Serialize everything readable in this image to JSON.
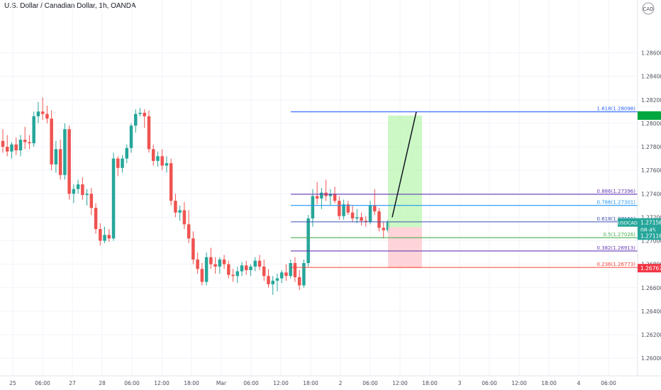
{
  "header": {
    "title": "U.S. Dollar / Canadian Dollar, 1h, OANDA",
    "currency": "CAD"
  },
  "colors": {
    "up": "#26a69a",
    "down": "#ef5350",
    "target_zone": "#b9f6b0",
    "stop_zone": "#ffcdd2",
    "grid": "#f0f3fa"
  },
  "chart_data": {
    "type": "candlestick",
    "title": "U.S. Dollar / Canadian Dollar, 1h, OANDA",
    "y_range": [
      1.2585,
      1.2905
    ],
    "y_ticks": [
      "1.26000",
      "1.26200",
      "1.26400",
      "1.26600",
      "1.26800",
      "1.27000",
      "1.27200",
      "1.27400",
      "1.27600",
      "1.27800",
      "1.28000",
      "1.28200",
      "1.28400",
      "1.28600"
    ],
    "x_ticks": [
      "25",
      "06:00",
      "27",
      "28",
      "06:00",
      "12:00",
      "18:00",
      "Mar",
      "06:00",
      "12:00",
      "18:00",
      "2",
      "06:00",
      "12:00",
      "18:00",
      "3",
      "06:00",
      "12:00",
      "18:00",
      "4",
      "06:00"
    ],
    "candles": [
      [
        1.2785,
        1.2795,
        1.2775,
        1.278
      ],
      [
        1.278,
        1.279,
        1.2772,
        1.2776
      ],
      [
        1.2776,
        1.2784,
        1.277,
        1.2782
      ],
      [
        1.2782,
        1.2788,
        1.2773,
        1.2777
      ],
      [
        1.2777,
        1.279,
        1.2772,
        1.2786
      ],
      [
        1.2786,
        1.2797,
        1.2778,
        1.2784
      ],
      [
        1.2784,
        1.279,
        1.2778,
        1.2783
      ],
      [
        1.2783,
        1.281,
        1.278,
        1.2806
      ],
      [
        1.2806,
        1.2818,
        1.28,
        1.281
      ],
      [
        1.281,
        1.2822,
        1.2803,
        1.2808
      ],
      [
        1.2808,
        1.2815,
        1.28,
        1.2804
      ],
      [
        1.2804,
        1.2811,
        1.276,
        1.2765
      ],
      [
        1.2765,
        1.2785,
        1.2758,
        1.2778
      ],
      [
        1.2778,
        1.2786,
        1.2752,
        1.2756
      ],
      [
        1.2756,
        1.28,
        1.2752,
        1.2795
      ],
      [
        1.2795,
        1.2798,
        1.2735,
        1.274
      ],
      [
        1.274,
        1.2748,
        1.2732,
        1.2744
      ],
      [
        1.2744,
        1.2752,
        1.274,
        1.2748
      ],
      [
        1.2748,
        1.2754,
        1.2735,
        1.2739
      ],
      [
        1.2739,
        1.2744,
        1.273,
        1.274
      ],
      [
        1.274,
        1.2745,
        1.2722,
        1.2728
      ],
      [
        1.2728,
        1.2732,
        1.2706,
        1.271
      ],
      [
        1.271,
        1.2715,
        1.2696,
        1.27
      ],
      [
        1.27,
        1.2712,
        1.2698,
        1.2705
      ],
      [
        1.2705,
        1.271,
        1.2699,
        1.2702
      ],
      [
        1.2702,
        1.2775,
        1.27,
        1.277
      ],
      [
        1.277,
        1.2772,
        1.2755,
        1.2762
      ],
      [
        1.2762,
        1.2773,
        1.2758,
        1.277
      ],
      [
        1.277,
        1.2782,
        1.2766,
        1.2779
      ],
      [
        1.2779,
        1.28,
        1.2775,
        1.2798
      ],
      [
        1.2798,
        1.2812,
        1.2792,
        1.2808
      ],
      [
        1.2808,
        1.2813,
        1.2806,
        1.2809
      ],
      [
        1.2809,
        1.2812,
        1.2796,
        1.2806
      ],
      [
        1.2806,
        1.2811,
        1.2775,
        1.2778
      ],
      [
        1.2778,
        1.2782,
        1.2764,
        1.2768
      ],
      [
        1.2768,
        1.2776,
        1.2763,
        1.2772
      ],
      [
        1.2772,
        1.2778,
        1.276,
        1.2764
      ],
      [
        1.2764,
        1.2772,
        1.2758,
        1.2766
      ],
      [
        1.2766,
        1.277,
        1.273,
        1.2734
      ],
      [
        1.2734,
        1.274,
        1.272,
        1.2724
      ],
      [
        1.2724,
        1.273,
        1.2717,
        1.2726
      ],
      [
        1.2726,
        1.2733,
        1.271,
        1.2714
      ],
      [
        1.2714,
        1.2726,
        1.2698,
        1.2702
      ],
      [
        1.2702,
        1.2708,
        1.268,
        1.2684
      ],
      [
        1.2684,
        1.269,
        1.2672,
        1.2676
      ],
      [
        1.2676,
        1.2681,
        1.2662,
        1.2665
      ],
      [
        1.2665,
        1.269,
        1.2662,
        1.2686
      ],
      [
        1.2686,
        1.2694,
        1.2676,
        1.268
      ],
      [
        1.268,
        1.2686,
        1.2672,
        1.2678
      ],
      [
        1.2678,
        1.2686,
        1.2672,
        1.2684
      ],
      [
        1.2684,
        1.2688,
        1.2676,
        1.268
      ],
      [
        1.268,
        1.2683,
        1.2668,
        1.2671
      ],
      [
        1.2671,
        1.2676,
        1.2665,
        1.267
      ],
      [
        1.267,
        1.2678,
        1.2664,
        1.2674
      ],
      [
        1.2674,
        1.2682,
        1.267,
        1.2679
      ],
      [
        1.2679,
        1.2683,
        1.2671,
        1.2675
      ],
      [
        1.2675,
        1.268,
        1.267,
        1.2678
      ],
      [
        1.2678,
        1.2686,
        1.2674,
        1.2683
      ],
      [
        1.2683,
        1.2688,
        1.2675,
        1.2678
      ],
      [
        1.2678,
        1.2684,
        1.2666,
        1.267
      ],
      [
        1.267,
        1.2676,
        1.266,
        1.2663
      ],
      [
        1.2663,
        1.267,
        1.2654,
        1.2666
      ],
      [
        1.2666,
        1.2672,
        1.2657,
        1.2668
      ],
      [
        1.2668,
        1.2675,
        1.2664,
        1.2673
      ],
      [
        1.2673,
        1.268,
        1.2666,
        1.267
      ],
      [
        1.267,
        1.2684,
        1.2668,
        1.2681
      ],
      [
        1.2681,
        1.2686,
        1.2665,
        1.2669
      ],
      [
        1.2669,
        1.2675,
        1.2658,
        1.2662
      ],
      [
        1.2662,
        1.2684,
        1.266,
        1.2681
      ],
      [
        1.2681,
        1.2722,
        1.2678,
        1.2719
      ],
      [
        1.2719,
        1.2744,
        1.2712,
        1.2738
      ],
      [
        1.2738,
        1.275,
        1.2731,
        1.2736
      ],
      [
        1.2736,
        1.2745,
        1.2727,
        1.2741
      ],
      [
        1.2741,
        1.2752,
        1.2734,
        1.2738
      ],
      [
        1.2738,
        1.2744,
        1.273,
        1.274
      ],
      [
        1.274,
        1.2746,
        1.2732,
        1.2734
      ],
      [
        1.2734,
        1.2738,
        1.2718,
        1.2721
      ],
      [
        1.2721,
        1.2735,
        1.2718,
        1.2731
      ],
      [
        1.2731,
        1.2734,
        1.2722,
        1.2724
      ],
      [
        1.2724,
        1.273,
        1.2716,
        1.2719
      ],
      [
        1.2719,
        1.2727,
        1.2715,
        1.272
      ],
      [
        1.272,
        1.2724,
        1.2713,
        1.2717
      ],
      [
        1.2717,
        1.2721,
        1.2712,
        1.2716
      ],
      [
        1.2716,
        1.2734,
        1.2714,
        1.273
      ],
      [
        1.273,
        1.2744,
        1.2722,
        1.2725
      ],
      [
        1.2725,
        1.2728,
        1.2708,
        1.2711
      ],
      [
        1.2711,
        1.2716,
        1.2702,
        1.2709
      ],
      [
        1.2709,
        1.2718,
        1.2707,
        1.2716
      ]
    ],
    "fib_levels": [
      {
        "label": "1.618(1.28098)",
        "value": 1.28098,
        "color": "#2962ff"
      },
      {
        "label": "0.886(1.27396)",
        "value": 1.27396,
        "color": "#673ab7"
      },
      {
        "label": "0.786(1.27301)",
        "value": 1.27301,
        "color": "#2196f3"
      },
      {
        "label": "0.618(1.27161)",
        "value": 1.27161,
        "color": "#3f51b5"
      },
      {
        "label": "0.5(1.27026)",
        "value": 1.27026,
        "color": "#4caf50"
      },
      {
        "label": "0.382(1.26913)",
        "value": 1.26913,
        "color": "#673ab7"
      },
      {
        "label": "0.236(1.26773)",
        "value": 1.26773,
        "color": "#f44336"
      }
    ],
    "position": {
      "entry": 1.27116,
      "target": 1.28066,
      "stop": 1.26767
    },
    "projection": [
      [
        1.272,
        1.28098
      ]
    ],
    "price_badges": [
      {
        "label": "USDCAD",
        "value": "1.27156",
        "time": "08:45",
        "color": "#26a69a"
      },
      {
        "label": "",
        "value": "1.27116",
        "color": "#26a69a"
      },
      {
        "label": "",
        "value": "1.26767",
        "color": "#f23645"
      },
      {
        "label": "",
        "value": "",
        "color": "#00a63e"
      }
    ]
  }
}
